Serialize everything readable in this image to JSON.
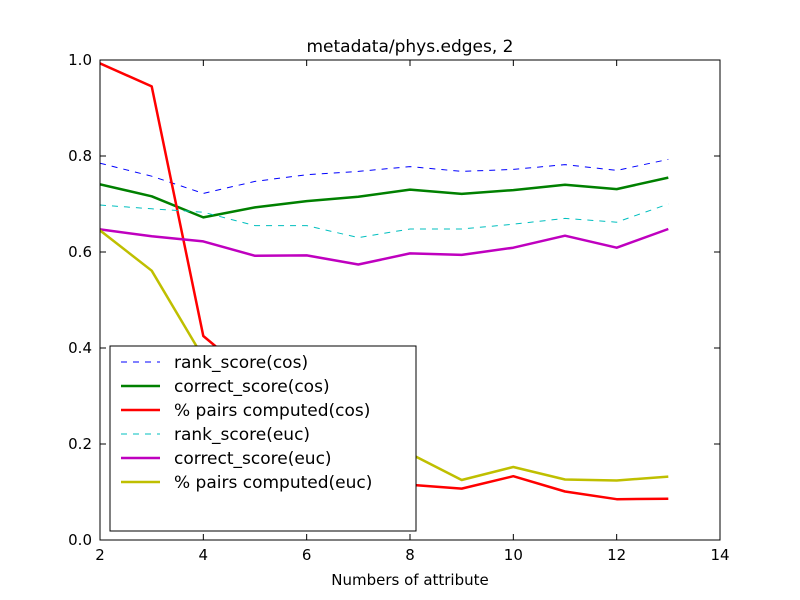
{
  "chart_data": {
    "type": "line",
    "title": "metadata/phys.edges, 2",
    "xlabel": "Numbers of attribute",
    "ylabel": "",
    "xlim": [
      2,
      14
    ],
    "ylim": [
      0.0,
      1.0
    ],
    "xticks": [
      "2",
      "4",
      "6",
      "8",
      "10",
      "12",
      "14"
    ],
    "yticks": [
      "0.0",
      "0.2",
      "0.4",
      "0.6",
      "0.8",
      "1.0"
    ],
    "x": [
      2,
      3,
      4,
      5,
      6,
      7,
      8,
      9,
      10,
      11,
      12,
      13
    ],
    "series": [
      {
        "name": "rank_score(cos)",
        "color": "#0000ff",
        "dash": "dashed",
        "width": 1,
        "values": [
          0.785,
          0.758,
          0.722,
          0.747,
          0.761,
          0.768,
          0.778,
          0.768,
          0.772,
          0.782,
          0.77,
          0.793
        ]
      },
      {
        "name": "correct_score(cos)",
        "color": "#008000",
        "dash": "solid",
        "width": 2.5,
        "values": [
          0.741,
          0.716,
          0.672,
          0.693,
          0.706,
          0.715,
          0.73,
          0.721,
          0.729,
          0.74,
          0.731,
          0.755
        ]
      },
      {
        "name": "% pairs computed(cos)",
        "color": "#ff0000",
        "dash": "solid",
        "width": 2.5,
        "values": [
          0.993,
          0.945,
          0.425,
          0.335,
          0.24,
          0.175,
          0.115,
          0.107,
          0.133,
          0.101,
          0.085,
          0.086
        ]
      },
      {
        "name": "rank_score(euc)",
        "color": "#00bfbf",
        "dash": "dashed",
        "width": 1,
        "values": [
          0.698,
          0.69,
          0.683,
          0.655,
          0.655,
          0.63,
          0.648,
          0.648,
          0.658,
          0.67,
          0.662,
          0.7
        ]
      },
      {
        "name": "correct_score(euc)",
        "color": "#bf00bf",
        "dash": "solid",
        "width": 2.5,
        "values": [
          0.647,
          0.633,
          0.622,
          0.592,
          0.593,
          0.574,
          0.597,
          0.594,
          0.609,
          0.634,
          0.609,
          0.648
        ]
      },
      {
        "name": "% pairs computed(euc)",
        "color": "#bfbf00",
        "dash": "solid",
        "width": 2.5,
        "values": [
          0.645,
          0.561,
          0.38,
          0.3,
          0.25,
          0.215,
          0.18,
          0.125,
          0.152,
          0.126,
          0.124,
          0.132
        ]
      }
    ],
    "grid": false,
    "legend_position": "lower-left"
  }
}
